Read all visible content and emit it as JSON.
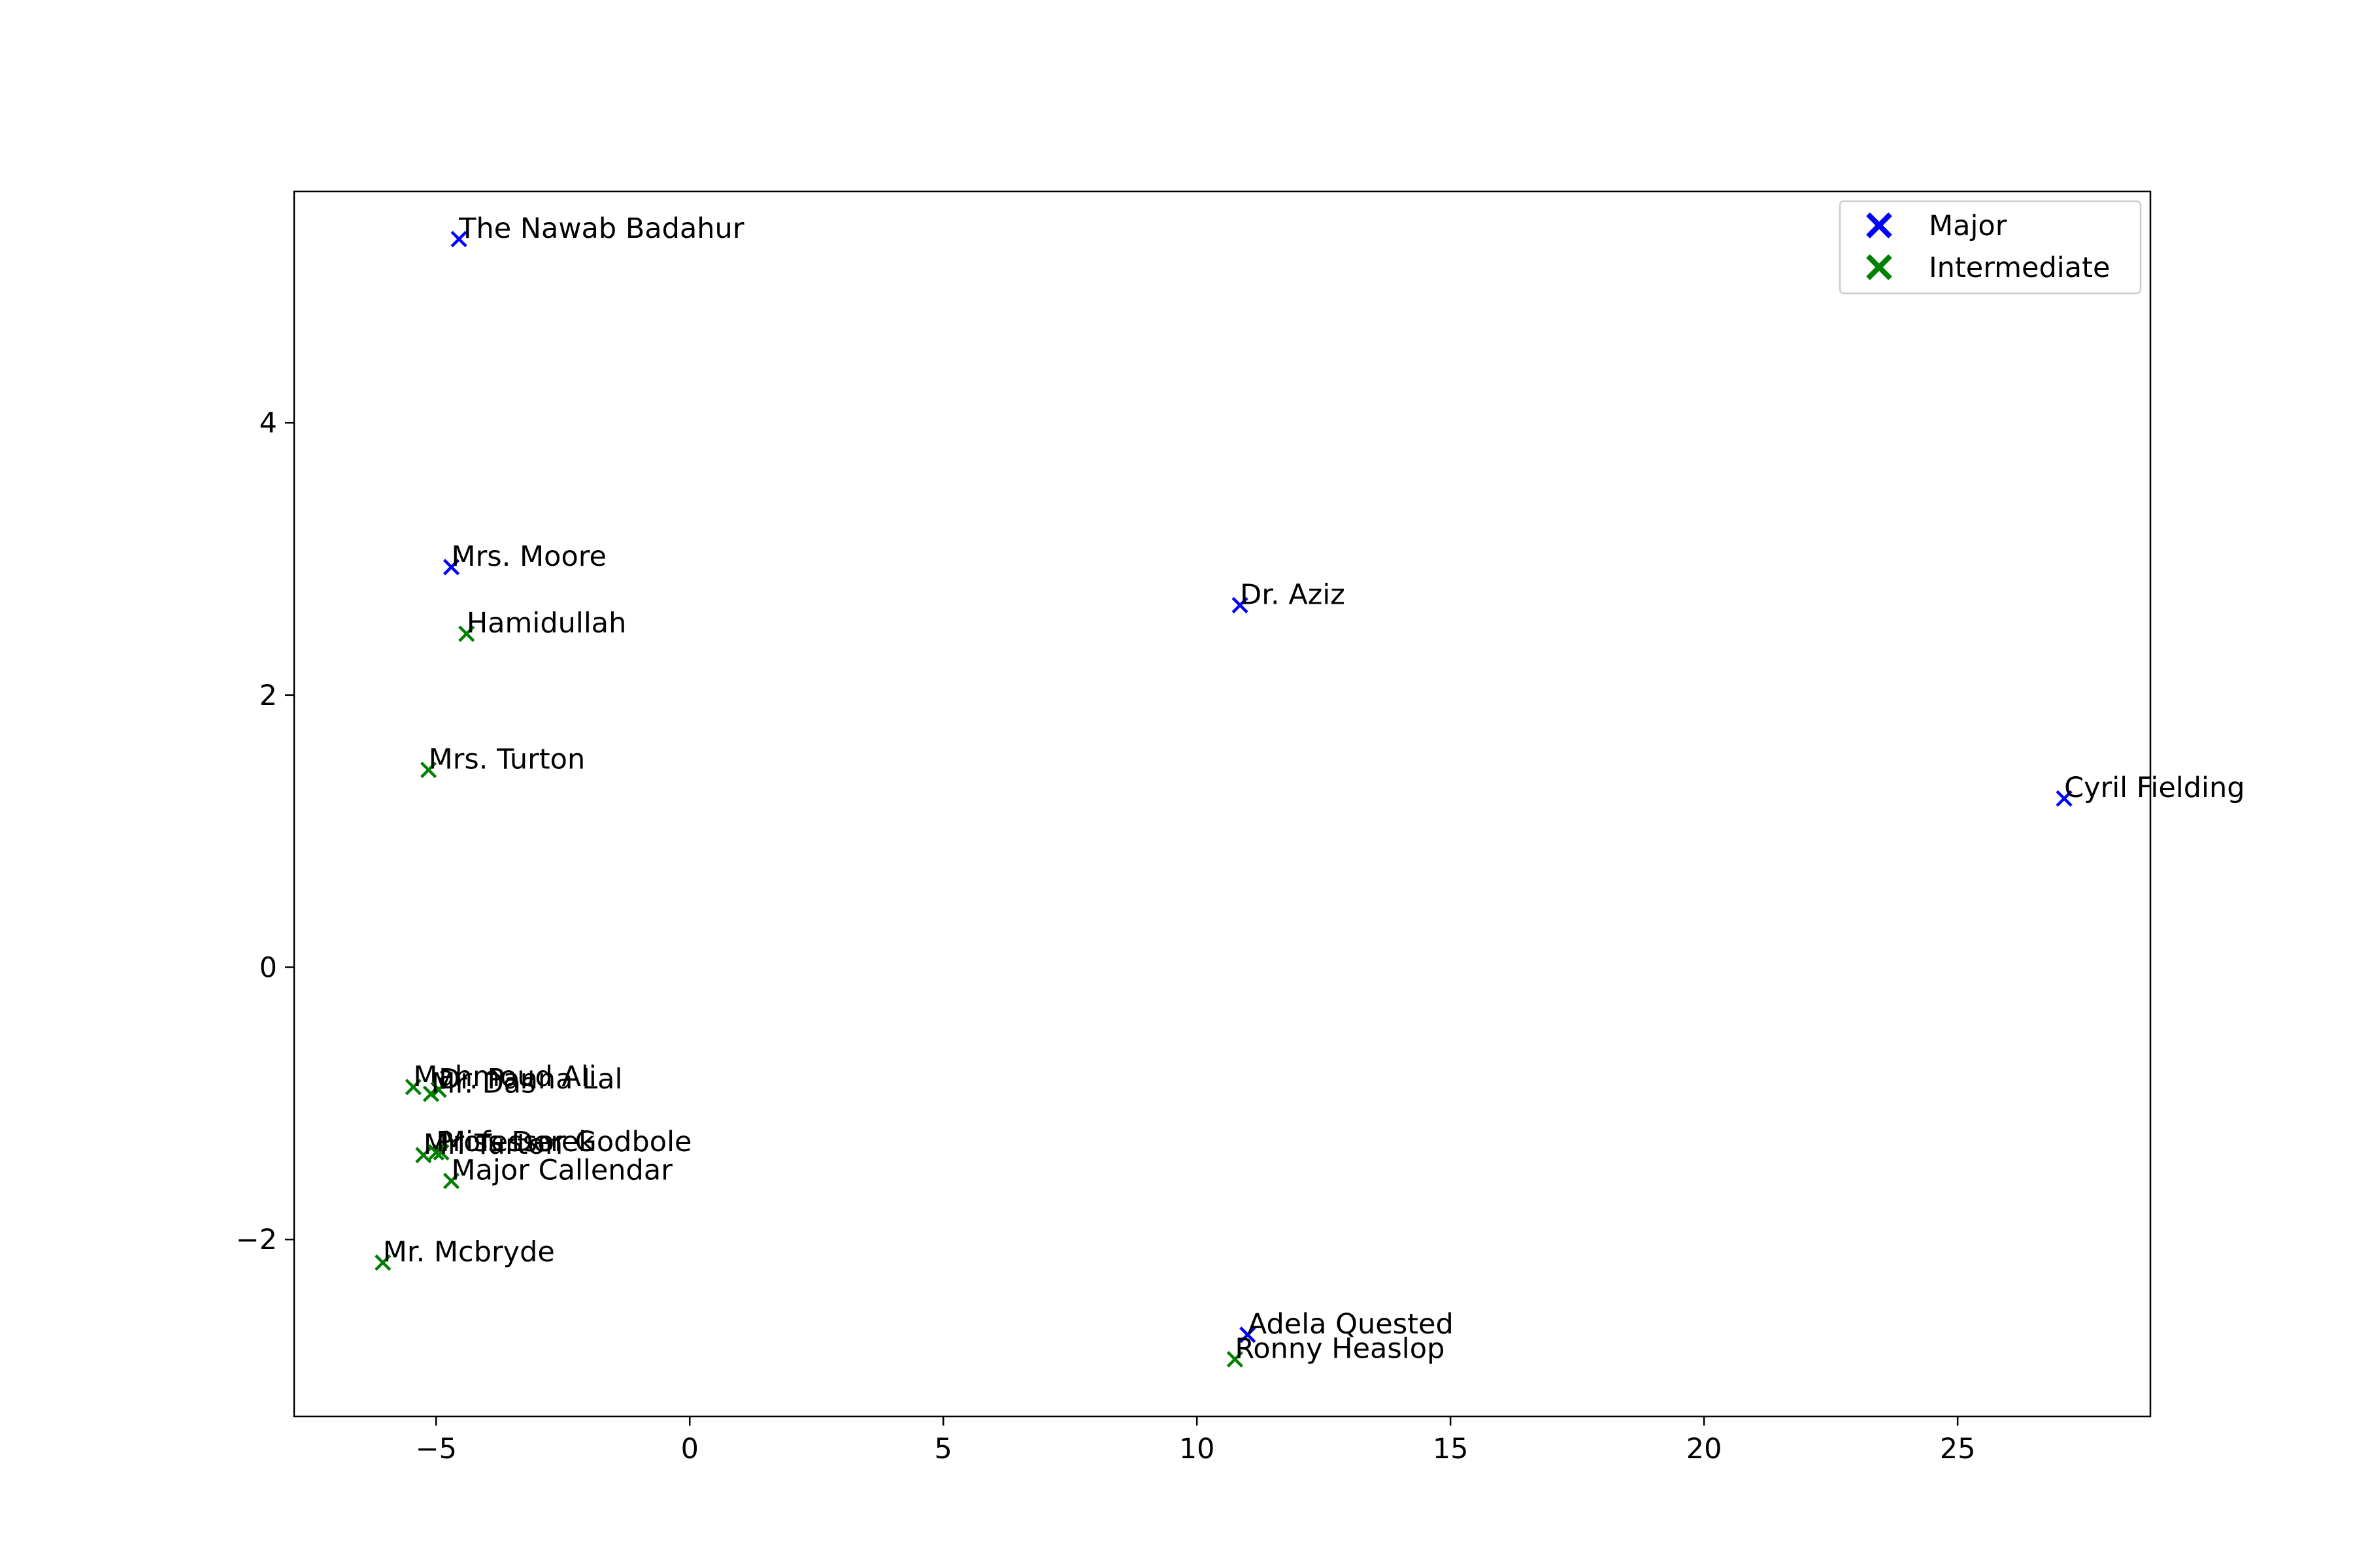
{
  "chart_data": {
    "type": "scatter",
    "title": "",
    "xlabel": "",
    "ylabel": "",
    "xlim": [
      -7.8,
      28.8
    ],
    "ylim": [
      -3.3,
      5.7
    ],
    "xticks": [
      -5,
      0,
      5,
      10,
      15,
      20,
      25
    ],
    "yticks": [
      -2,
      0,
      2,
      4
    ],
    "xtick_labels": [
      "−5",
      "0",
      "5",
      "10",
      "15",
      "20",
      "25"
    ],
    "ytick_labels": [
      "−2",
      "0",
      "2",
      "4"
    ],
    "grid": false,
    "legend_position": "top-right",
    "marker": "x",
    "series": [
      {
        "name": "Major",
        "color": "#0000ff",
        "points": [
          {
            "label": "The Nawab Badahur",
            "x": -4.55,
            "y": 5.35
          },
          {
            "label": "Mrs. Moore",
            "x": -4.7,
            "y": 2.94
          },
          {
            "label": "Dr. Aziz",
            "x": 10.85,
            "y": 2.66
          },
          {
            "label": "Cyril Fielding",
            "x": 27.1,
            "y": 1.24
          },
          {
            "label": "Adela Quested",
            "x": 11.0,
            "y": -2.7
          }
        ]
      },
      {
        "name": "Intermediate",
        "color": "#008000",
        "points": [
          {
            "label": "Hamidullah",
            "x": -4.4,
            "y": 2.45
          },
          {
            "label": "Mrs. Turton",
            "x": -5.15,
            "y": 1.45
          },
          {
            "label": "Mahmoud Ali",
            "x": -5.45,
            "y": -0.88
          },
          {
            "label": "Dr. Panna Lal",
            "x": -4.95,
            "y": -0.9
          },
          {
            "label": "Mr. Das",
            "x": -5.1,
            "y": -0.93
          },
          {
            "label": "Miss Derek",
            "x": -4.9,
            "y": -1.36
          },
          {
            "label": "Mr. Turton",
            "x": -5.25,
            "y": -1.38
          },
          {
            "label": "Professor Godbole",
            "x": -5.0,
            "y": -1.36
          },
          {
            "label": "Major Callendar",
            "x": -4.7,
            "y": -1.57
          },
          {
            "label": "Mr. Mcbryde",
            "x": -6.05,
            "y": -2.17
          },
          {
            "label": "Ronny Heaslop",
            "x": 10.75,
            "y": -2.88
          }
        ]
      }
    ]
  }
}
